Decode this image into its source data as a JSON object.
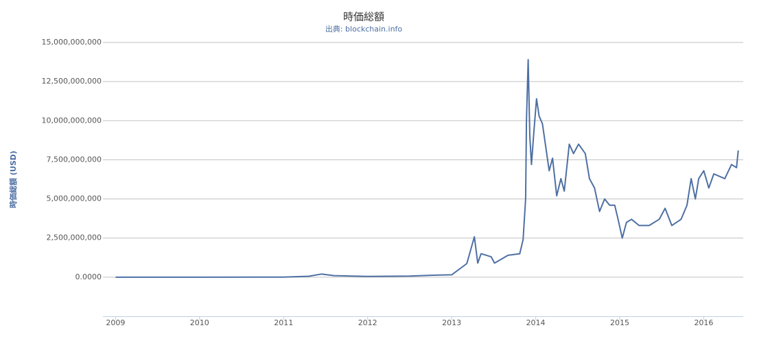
{
  "chart_data": {
    "type": "line",
    "title": "時価総額",
    "subtitle": "出典: blockchain.info",
    "y_label": "時価総額 (USD)",
    "xlim": [
      2008.85,
      2016.47
    ],
    "xticks": [
      2009,
      2010,
      2011,
      2012,
      2013,
      2014,
      2015,
      2016
    ],
    "ylim": [
      -2500000000,
      15000000000
    ],
    "yticks": [
      {
        "value": 0,
        "label": "0.0000"
      },
      {
        "value": 2500000000,
        "label": "2,500,000,000"
      },
      {
        "value": 5000000000,
        "label": "5,000,000,000"
      },
      {
        "value": 7500000000,
        "label": "7,500,000,000"
      },
      {
        "value": 10000000000,
        "label": "10,000,000,000"
      },
      {
        "value": 12500000000,
        "label": "12,500,000,000"
      },
      {
        "value": 15000000000,
        "label": "15,000,000,000"
      }
    ],
    "grid": true,
    "series": [
      {
        "color": "#4d6fa3",
        "x": [
          2009.0,
          2010.0,
          2011.0,
          2011.3,
          2011.45,
          2011.6,
          2012.0,
          2012.5,
          2012.75,
          2013.0,
          2013.18,
          2013.27,
          2013.31,
          2013.35,
          2013.47,
          2013.51,
          2013.67,
          2013.81,
          2013.85,
          2013.88,
          2013.89,
          2013.91,
          2013.93,
          2013.95,
          2013.98,
          2014.01,
          2014.04,
          2014.08,
          2014.12,
          2014.16,
          2014.2,
          2014.25,
          2014.3,
          2014.34,
          2014.4,
          2014.45,
          2014.51,
          2014.59,
          2014.64,
          2014.7,
          2014.76,
          2014.82,
          2014.88,
          2014.94,
          2014.98,
          2015.03,
          2015.08,
          2015.14,
          2015.23,
          2015.35,
          2015.47,
          2015.54,
          2015.62,
          2015.73,
          2015.8,
          2015.85,
          2015.9,
          2015.94,
          2016.0,
          2016.06,
          2016.12,
          2016.25,
          2016.33,
          2016.39,
          2016.41
        ],
        "values": [
          0,
          0,
          5000000,
          60000000,
          200000000,
          100000000,
          50000000,
          70000000,
          120000000,
          150000000,
          870000000,
          2580000000,
          900000000,
          1500000000,
          1300000000,
          900000000,
          1400000000,
          1500000000,
          2400000000,
          5000000000,
          10000000000,
          13900000000,
          9000000000,
          7200000000,
          9400000000,
          11400000000,
          10300000000,
          9800000000,
          8300000000,
          6800000000,
          7600000000,
          5200000000,
          6300000000,
          5500000000,
          8500000000,
          7900000000,
          8500000000,
          7900000000,
          6300000000,
          5700000000,
          4200000000,
          5000000000,
          4600000000,
          4600000000,
          3700000000,
          2500000000,
          3500000000,
          3700000000,
          3300000000,
          3300000000,
          3700000000,
          4400000000,
          3300000000,
          3700000000,
          4600000000,
          6300000000,
          5000000000,
          6300000000,
          6800000000,
          5700000000,
          6600000000,
          6300000000,
          7200000000,
          7000000000,
          8100000000
        ]
      }
    ]
  }
}
